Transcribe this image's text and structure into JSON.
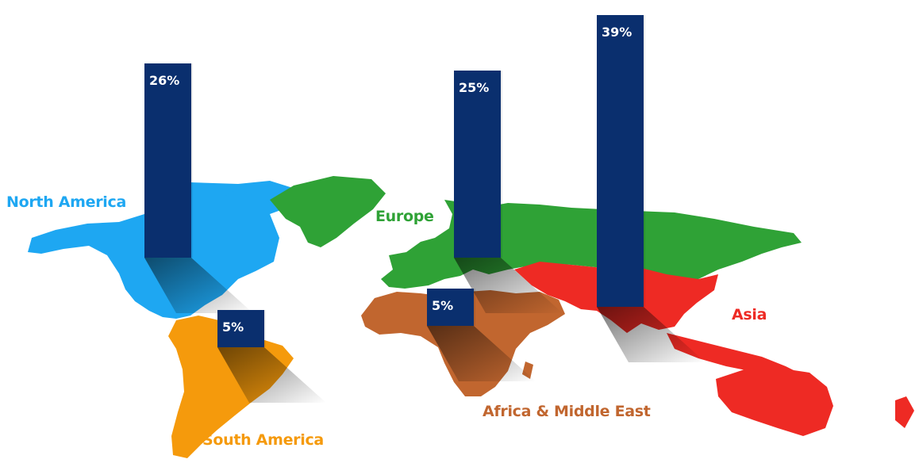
{
  "colors": {
    "north_america": "#1ea7f2",
    "south_america": "#f59a0c",
    "europe": "#2fa236",
    "africa_middle_east": "#c1662f",
    "asia": "#ee2a24",
    "bar": "#0a2f6e",
    "bar_text": "#ffffff"
  },
  "chart_data": {
    "type": "bar",
    "categories": [
      "North America",
      "South America",
      "Europe",
      "Africa & Middle East",
      "Asia"
    ],
    "values": [
      26,
      5,
      25,
      5,
      39
    ],
    "value_labels": [
      "26%",
      "5%",
      "25%",
      "5%",
      "39%"
    ],
    "unit": "%"
  },
  "regions": [
    {
      "key": "north_america",
      "label": "North America"
    },
    {
      "key": "south_america",
      "label": "South America"
    },
    {
      "key": "europe",
      "label": "Europe"
    },
    {
      "key": "africa_middle_east",
      "label": "Africa & Middle East"
    },
    {
      "key": "asia",
      "label": "Asia"
    }
  ]
}
